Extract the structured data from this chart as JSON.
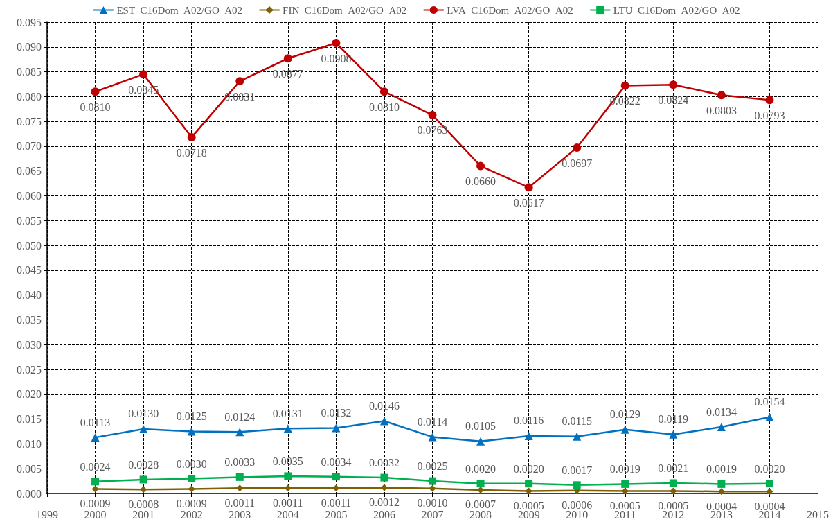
{
  "chart_data": {
    "type": "line",
    "x": [
      2000,
      2001,
      2002,
      2003,
      2004,
      2005,
      2006,
      2007,
      2008,
      2009,
      2010,
      2011,
      2012,
      2013,
      2014
    ],
    "series": [
      {
        "name": "EST_C16Dom_A02/GO_A02",
        "color": "#0070c0",
        "marker": "triangle",
        "values": [
          0.0113,
          0.013,
          0.0125,
          0.0124,
          0.0131,
          0.0132,
          0.0146,
          0.0114,
          0.0105,
          0.0116,
          0.0115,
          0.0129,
          0.0119,
          0.0134,
          0.0154
        ],
        "value_labels": [
          "0.0113",
          "0.0130",
          "0.0125",
          "0.0124",
          "0.0131",
          "0.0132",
          "0.0146",
          "0.0114",
          "0.0105",
          "0.0116",
          "0.0115",
          "0.0129",
          "0.0119",
          "0.0134",
          "0.0154"
        ]
      },
      {
        "name": "FIN_C16Dom_A02/GO_A02",
        "color": "#7f6000",
        "marker": "diamond",
        "values": [
          0.0009,
          0.0008,
          0.0009,
          0.0011,
          0.0011,
          0.0011,
          0.0012,
          0.001,
          0.0007,
          0.0005,
          0.0006,
          0.0005,
          0.0005,
          0.0004,
          0.0004
        ],
        "value_labels": [
          "0.0009",
          "0.0008",
          "0.0009",
          "0.0011",
          "0.0011",
          "0.0011",
          "0.0012",
          "0.0010",
          "0.0007",
          "0.0005",
          "0.0006",
          "0.0005",
          "0.0005",
          "0.0004",
          "0.0004"
        ]
      },
      {
        "name": "LVA_C16Dom_A02/GO_A02",
        "color": "#c00000",
        "marker": "circle",
        "values": [
          0.081,
          0.0845,
          0.0718,
          0.0831,
          0.0877,
          0.0908,
          0.081,
          0.0763,
          0.066,
          0.0617,
          0.0697,
          0.0822,
          0.0824,
          0.0803,
          0.0793
        ],
        "value_labels": [
          "0.0810",
          "0.0845",
          "0.0718",
          "0.0831",
          "0.0877",
          "0.0908",
          "0.0810",
          "0.0763",
          "0.0660",
          "0.0617",
          "0.0697",
          "0.0822",
          "0.0824",
          "0.0803",
          "0.0793"
        ]
      },
      {
        "name": "LTU_C16Dom_A02/GO_A02",
        "color": "#00b050",
        "marker": "square",
        "values": [
          0.0024,
          0.0028,
          0.003,
          0.0033,
          0.0035,
          0.0034,
          0.0032,
          0.0025,
          0.002,
          0.002,
          0.0017,
          0.0019,
          0.0021,
          0.0019,
          0.002
        ],
        "value_labels": [
          "0.0024",
          "0.0028",
          "0.0030",
          "0.0033",
          "0.0035",
          "0.0034",
          "0.0032",
          "0.0025",
          "0.0020",
          "0.0020",
          "0.0017",
          "0.0019",
          "0.0021",
          "0.0019",
          "0.0020"
        ]
      }
    ],
    "xlim": [
      1999,
      2015
    ],
    "xticks": [
      1999,
      2000,
      2001,
      2002,
      2003,
      2004,
      2005,
      2006,
      2007,
      2008,
      2009,
      2010,
      2011,
      2012,
      2013,
      2014,
      2015
    ],
    "ylim": [
      0,
      0.095
    ],
    "yticks": [
      {
        "value": 0,
        "label": "0.000"
      },
      {
        "value": 0.005,
        "label": "0.005"
      },
      {
        "value": 0.01,
        "label": "0.010"
      },
      {
        "value": 0.015,
        "label": "0.015"
      },
      {
        "value": 0.02,
        "label": "0.020"
      },
      {
        "value": 0.025,
        "label": "0.025"
      },
      {
        "value": 0.03,
        "label": "0.030"
      },
      {
        "value": 0.035,
        "label": "0.035"
      },
      {
        "value": 0.04,
        "label": "0.040"
      },
      {
        "value": 0.045,
        "label": "0.045"
      },
      {
        "value": 0.05,
        "label": "0.050"
      },
      {
        "value": 0.055,
        "label": "0.055"
      },
      {
        "value": 0.06,
        "label": "0.060"
      },
      {
        "value": 0.065,
        "label": "0.065"
      },
      {
        "value": 0.07,
        "label": "0.070"
      },
      {
        "value": 0.075,
        "label": "0.075"
      },
      {
        "value": 0.08,
        "label": "0.080"
      },
      {
        "value": 0.085,
        "label": "0.085"
      },
      {
        "value": 0.09,
        "label": "0.090"
      },
      {
        "value": 0.095,
        "label": "0.095"
      }
    ],
    "grid": true,
    "legend": "top",
    "line_style": "solid"
  }
}
